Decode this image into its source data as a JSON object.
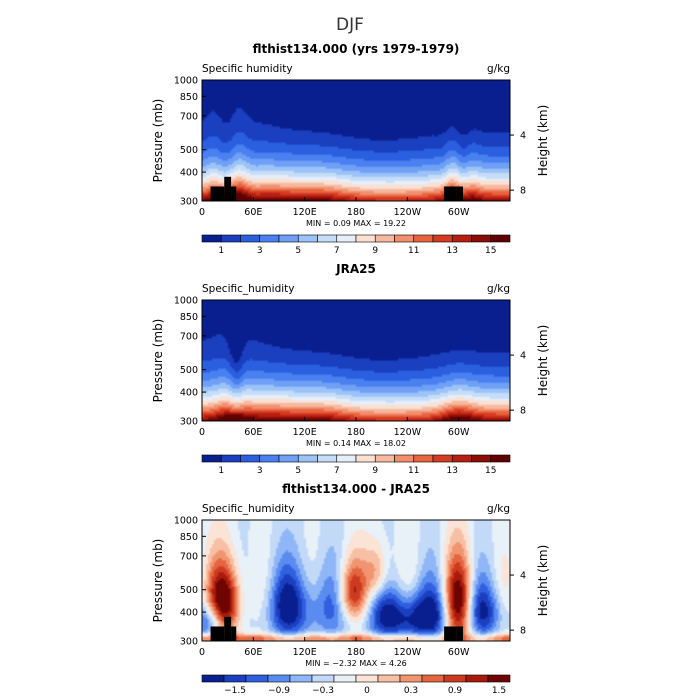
{
  "page": {
    "season": "DJF"
  },
  "chart_data": [
    {
      "type": "heatmap",
      "title": "flthist134.000 (yrs 1979-1979)",
      "left_label": "Specific humidity",
      "unit": "g/kg",
      "ylabel": "Pressure (mb)",
      "ylabel_right": "Height (km)",
      "x_ticks": [
        "0",
        "60E",
        "120E",
        "180",
        "120W",
        "60W"
      ],
      "x_tick_lon": [
        0,
        60,
        120,
        180,
        240,
        300
      ],
      "xlim": [
        0,
        360
      ],
      "y_ticks": [
        "300",
        "400",
        "500",
        "700",
        "850",
        "1000"
      ],
      "y_tick_values": [
        300,
        400,
        500,
        700,
        850,
        1000
      ],
      "ylim": [
        300,
        1000
      ],
      "right_ticks": [
        "8",
        "4"
      ],
      "right_tick_km": [
        8,
        4
      ],
      "stats": "MIN =    0.09   MAX =   19.22",
      "colorbar": {
        "labels": [
          "1",
          "3",
          "5",
          "7",
          "9",
          "11",
          "13",
          "15"
        ],
        "colors": [
          "#0a1f8f",
          "#1a3fbf",
          "#2a5fe0",
          "#4a80f0",
          "#6fa0f5",
          "#9cc3f8",
          "#c6ddf8",
          "#e6eef8",
          "#fbe0d2",
          "#f6b9a0",
          "#f0906e",
          "#e8643f",
          "#d63a22",
          "#b51f12",
          "#8a0d06",
          "#5e0000"
        ]
      },
      "profile": "model"
    },
    {
      "type": "heatmap",
      "title": "JRA25",
      "left_label": "Specific_humidity",
      "unit": "g/kg",
      "ylabel": "Pressure (mb)",
      "ylabel_right": "Height (km)",
      "x_ticks": [
        "0",
        "60E",
        "120E",
        "180",
        "120W",
        "60W"
      ],
      "x_tick_lon": [
        0,
        60,
        120,
        180,
        240,
        300
      ],
      "xlim": [
        0,
        360
      ],
      "y_ticks": [
        "300",
        "400",
        "500",
        "700",
        "850",
        "1000"
      ],
      "y_tick_values": [
        300,
        400,
        500,
        700,
        850,
        1000
      ],
      "ylim": [
        300,
        1000
      ],
      "right_ticks": [
        "8",
        "4"
      ],
      "right_tick_km": [
        8,
        4
      ],
      "stats": "MIN =    0.14   MAX =   18.02",
      "colorbar": {
        "labels": [
          "1",
          "3",
          "5",
          "7",
          "9",
          "11",
          "13",
          "15"
        ],
        "colors": [
          "#0a1f8f",
          "#1a3fbf",
          "#2a5fe0",
          "#4a80f0",
          "#6fa0f5",
          "#9cc3f8",
          "#c6ddf8",
          "#e6eef8",
          "#fbe0d2",
          "#f6b9a0",
          "#f0906e",
          "#e8643f",
          "#d63a22",
          "#b51f12",
          "#8a0d06",
          "#5e0000"
        ]
      },
      "profile": "obs"
    },
    {
      "type": "heatmap",
      "title": "flthist134.000 - JRA25",
      "left_label": "Specific_humidity",
      "unit": "g/kg",
      "ylabel": "Pressure (mb)",
      "ylabel_right": "Height (km)",
      "x_ticks": [
        "0",
        "60E",
        "120E",
        "180",
        "120W",
        "60W"
      ],
      "x_tick_lon": [
        0,
        60,
        120,
        180,
        240,
        300
      ],
      "xlim": [
        0,
        360
      ],
      "y_ticks": [
        "300",
        "400",
        "500",
        "700",
        "850",
        "1000"
      ],
      "y_tick_values": [
        300,
        400,
        500,
        700,
        850,
        1000
      ],
      "ylim": [
        300,
        1000
      ],
      "right_ticks": [
        "8",
        "4"
      ],
      "right_tick_km": [
        8,
        4
      ],
      "stats": "MIN =   −2.32   MAX =   4.26",
      "colorbar": {
        "labels": [
          "−1.5",
          "−0.9",
          "−0.3",
          "0",
          "0.3",
          "0.9",
          "1.5"
        ],
        "colors": [
          "#0a1f8f",
          "#1a3fbf",
          "#3060e0",
          "#5a8cf0",
          "#8fb6f6",
          "#c2daf8",
          "#e8f0f8",
          "#fbe3d6",
          "#f7bfa3",
          "#f09570",
          "#e4653f",
          "#cc3a20",
          "#a81a0c",
          "#6e0500"
        ]
      },
      "profile": "diff"
    }
  ]
}
